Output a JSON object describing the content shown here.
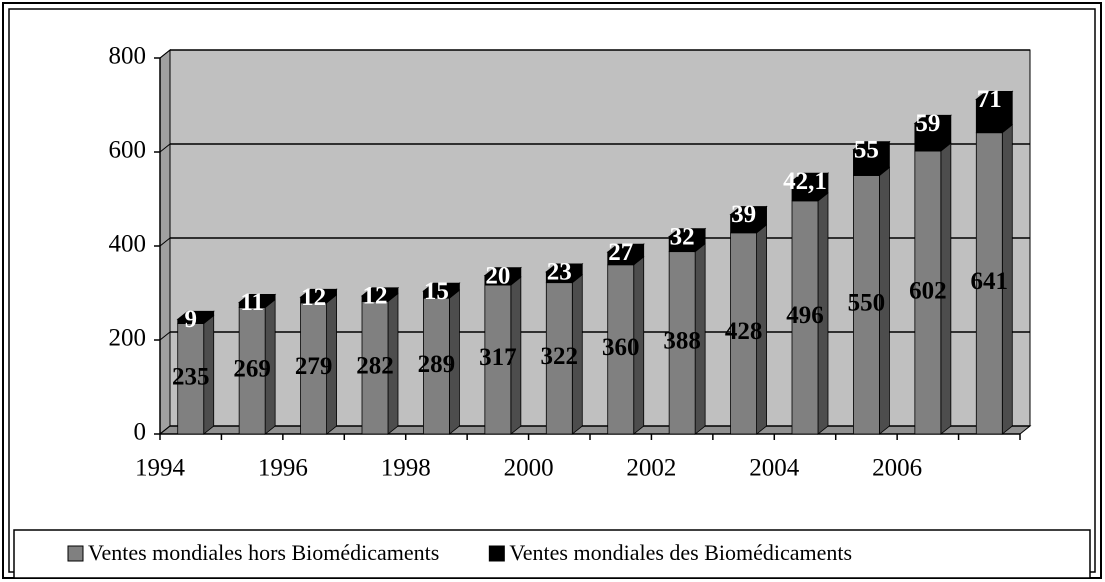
{
  "chart_data": {
    "type": "bar",
    "stacked": true,
    "categories": [
      "1994",
      null,
      "1996",
      null,
      "1998",
      null,
      "2000",
      null,
      "2002",
      null,
      "2004",
      null,
      "2006",
      null
    ],
    "series": [
      {
        "name": "Ventes mondiales hors Biomédicaments",
        "color": "#808080",
        "values": [
          235,
          269,
          279,
          282,
          289,
          317,
          322,
          360,
          388,
          428,
          496,
          550,
          602,
          641
        ]
      },
      {
        "name": "Ventes mondiales des Biomédicaments",
        "color": "#000000",
        "values": [
          9,
          11,
          12,
          12,
          15,
          20,
          23,
          27,
          32,
          39,
          42.1,
          55,
          59,
          71
        ],
        "value_labels": [
          "9",
          "11",
          "12",
          "12",
          "15",
          "20",
          "23",
          "27",
          "32",
          "39",
          "42,1",
          "55",
          "59",
          "71"
        ]
      }
    ],
    "ylim": [
      0,
      800
    ],
    "yticks": [
      0,
      200,
      400,
      600,
      800
    ],
    "grid": true,
    "legend": "bottom"
  }
}
